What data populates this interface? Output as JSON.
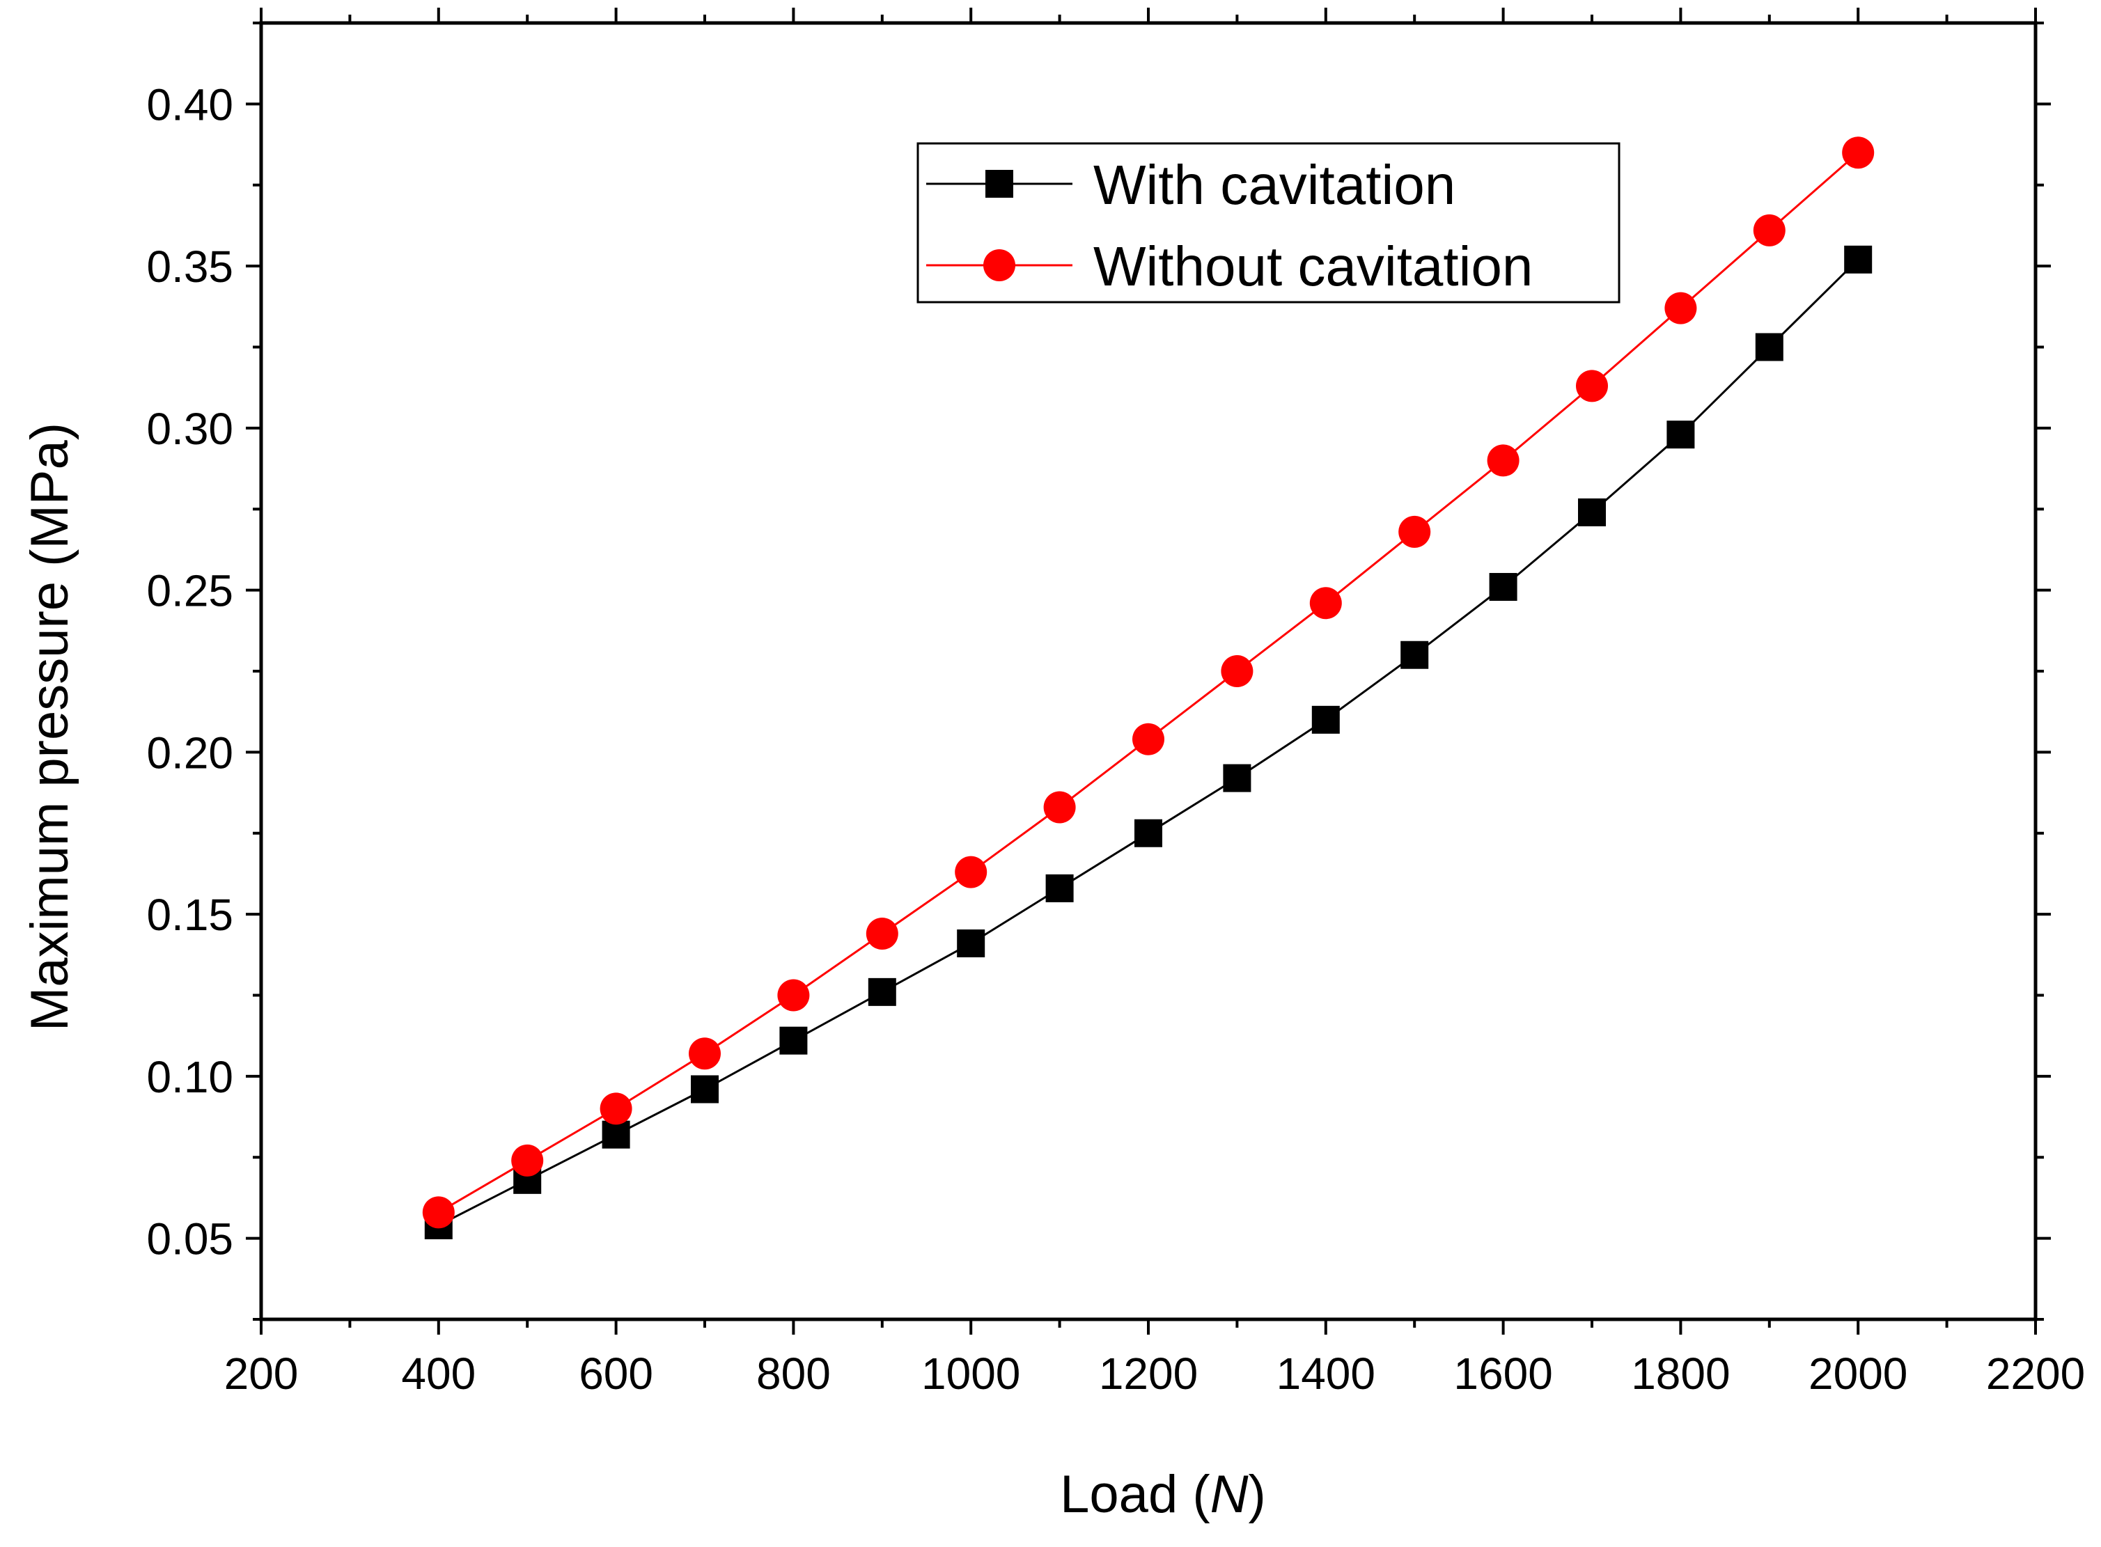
{
  "chart_data": {
    "type": "line",
    "title": "",
    "xlabel": {
      "prefix": "Load (",
      "unit": "N",
      "suffix": ")"
    },
    "ylabel": "Maximum pressure (MPa)",
    "xlim": [
      200,
      2200
    ],
    "ylim": [
      0.025,
      0.425
    ],
    "x_ticks": [
      "200",
      "400",
      "600",
      "800",
      "1000",
      "1200",
      "1400",
      "1600",
      "1800",
      "2000",
      "2200"
    ],
    "y_ticks": [
      "0.05",
      "0.10",
      "0.15",
      "0.20",
      "0.25",
      "0.30",
      "0.35",
      "0.40"
    ],
    "grid": false,
    "legend_position": "top-right",
    "x": [
      400,
      500,
      600,
      700,
      800,
      900,
      1000,
      1100,
      1200,
      1300,
      1400,
      1500,
      1600,
      1700,
      1800,
      1900,
      2000
    ],
    "series": [
      {
        "name": "With cavitation",
        "color": "#000000",
        "marker": "square",
        "values": [
          0.054,
          0.068,
          0.082,
          0.096,
          0.111,
          0.126,
          0.141,
          0.158,
          0.175,
          0.192,
          0.21,
          0.23,
          0.251,
          0.274,
          0.298,
          0.325,
          0.352
        ]
      },
      {
        "name": "Without cavitation",
        "color": "#ff0000",
        "marker": "circle",
        "values": [
          0.058,
          0.074,
          0.09,
          0.107,
          0.125,
          0.144,
          0.163,
          0.183,
          0.204,
          0.225,
          0.246,
          0.268,
          0.29,
          0.313,
          0.337,
          0.361,
          0.385
        ]
      }
    ]
  }
}
